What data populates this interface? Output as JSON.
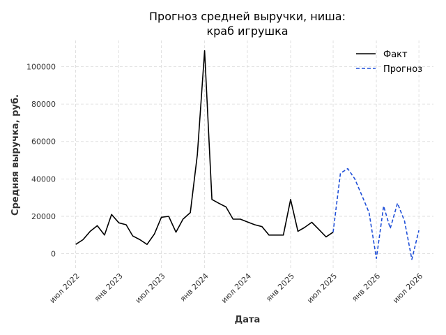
{
  "chart_data": {
    "type": "line",
    "title_lines": [
      "Прогноз средней выручки, ниша:",
      "краб игрушка"
    ],
    "xlabel": "Дата",
    "ylabel": "Средняя выручка, руб.",
    "x_tick_labels": [
      "июл 2022",
      "янв 2023",
      "июл 2023",
      "янв 2024",
      "июл 2024",
      "янв 2025",
      "июл 2025",
      "янв 2026",
      "июл 2026"
    ],
    "y_ticks": [
      0,
      20000,
      40000,
      60000,
      80000,
      100000
    ],
    "y_tick_labels": [
      "0",
      "20000",
      "40000",
      "60000",
      "80000",
      "100000"
    ],
    "ylim": [
      -8000,
      114000
    ],
    "xlim": [
      "2022-05-01",
      "2026-09-01"
    ],
    "grid": true,
    "legend_position": "top-right",
    "series": [
      {
        "name": "Факт",
        "style": "solid",
        "color": "#000000",
        "x": [
          "2022-07-01",
          "2022-08-01",
          "2022-09-01",
          "2022-10-01",
          "2022-11-01",
          "2022-12-01",
          "2023-01-01",
          "2023-02-01",
          "2023-03-01",
          "2023-04-01",
          "2023-05-01",
          "2023-06-01",
          "2023-07-01",
          "2023-08-01",
          "2023-09-01",
          "2023-10-01",
          "2023-11-01",
          "2023-12-01",
          "2024-01-01",
          "2024-02-01",
          "2024-03-01",
          "2024-04-01",
          "2024-05-01",
          "2024-06-01",
          "2024-07-01",
          "2024-08-01",
          "2024-09-01",
          "2024-10-01",
          "2024-11-01",
          "2024-12-01",
          "2025-01-01",
          "2025-02-01",
          "2025-03-01",
          "2025-04-01",
          "2025-05-01",
          "2025-06-01",
          "2025-07-01"
        ],
        "values": [
          5000,
          7500,
          12000,
          15000,
          10000,
          21000,
          16500,
          15500,
          9500,
          7500,
          5000,
          10500,
          19500,
          20000,
          11500,
          18500,
          22000,
          53000,
          108500,
          29000,
          27000,
          25000,
          18500,
          18500,
          17000,
          15500,
          14500,
          10000,
          10000,
          10000,
          29000,
          12000,
          14000,
          16800,
          13000,
          9000,
          11500
        ]
      },
      {
        "name": "Прогноз",
        "style": "dashed",
        "color": "#1f4fd8",
        "x": [
          "2025-07-01",
          "2025-08-01",
          "2025-09-01",
          "2025-10-01",
          "2025-11-01",
          "2025-12-01",
          "2026-01-01",
          "2026-02-01",
          "2026-03-01",
          "2026-04-01",
          "2026-05-01",
          "2026-06-01",
          "2026-07-01"
        ],
        "values": [
          11500,
          43000,
          45500,
          40000,
          31000,
          22000,
          -2500,
          25500,
          13500,
          27000,
          17500,
          -3000,
          12500
        ]
      }
    ]
  }
}
